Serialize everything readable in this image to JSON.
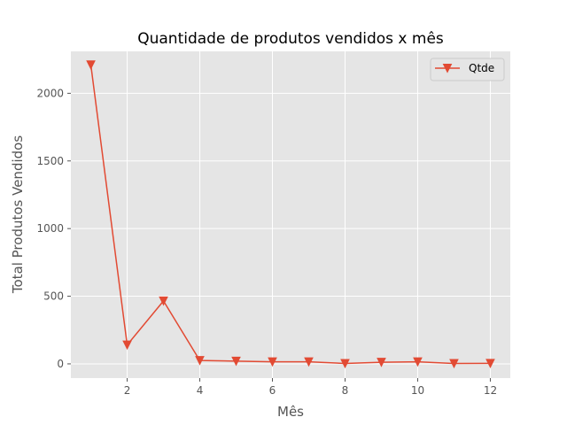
{
  "chart_data": {
    "type": "line",
    "title": "Quantidade de produtos vendidos x mês",
    "xlabel": "Mês",
    "ylabel": "Total Produtos Vendidos",
    "xlim": [
      0.45,
      12.55
    ],
    "ylim": [
      -105,
      2310
    ],
    "xticks": [
      2,
      4,
      6,
      8,
      10,
      12
    ],
    "yticks": [
      0,
      500,
      1000,
      1500,
      2000
    ],
    "grid": true,
    "legend_position": "top-right",
    "series": [
      {
        "name": "Qtde",
        "color": "#E24A33",
        "marker": "triangle-down",
        "x": [
          1,
          2,
          3,
          4,
          5,
          6,
          7,
          8,
          9,
          10,
          11,
          12
        ],
        "y": [
          2210,
          140,
          465,
          25,
          20,
          15,
          15,
          3,
          12,
          15,
          3,
          4
        ]
      }
    ]
  }
}
